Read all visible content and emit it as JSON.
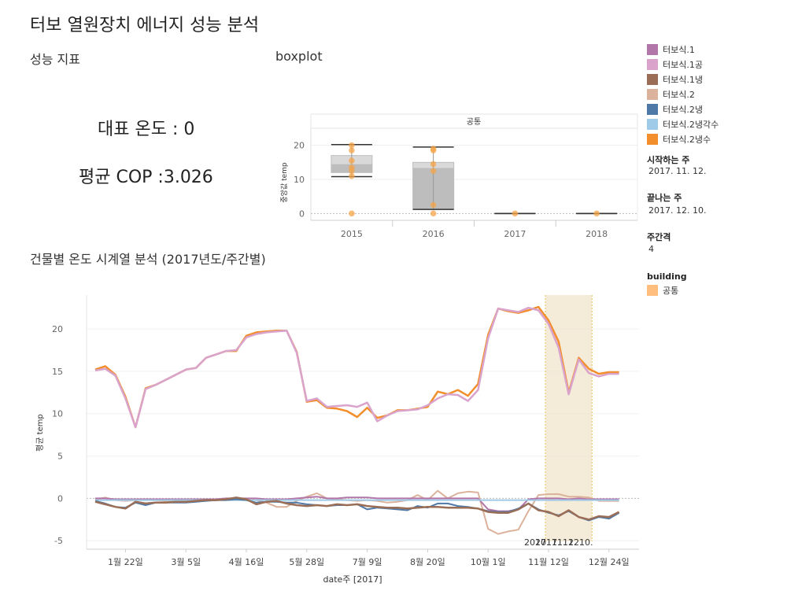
{
  "page": {
    "title": "터보 열원장치 에너지 성능 분석"
  },
  "performance": {
    "heading": "성능 지표",
    "rep_temp_label": "대표 온도 : 0",
    "avg_cop_label": "평균 COP :3.026"
  },
  "boxplot": {
    "heading": "boxplot",
    "panel_label": "공통",
    "ylabel": "중앙값 temp",
    "ytick_labels": [
      "20",
      "10",
      "0"
    ]
  },
  "timeseries": {
    "heading": "건물별  온도 시계열 분석 (2017년도/주간별)",
    "ylabel": "평균 temp",
    "xlabel": "date주 [2017]",
    "ytick_labels": [
      "20",
      "15",
      "10",
      "5",
      "0",
      "-5"
    ],
    "xtick_labels": [
      "1월 22일",
      "3월 5일",
      "4월 16일",
      "5월 28일",
      "7월 9일",
      "8월 20일",
      "10월 1일",
      "11월 12일",
      "12월 24일"
    ],
    "highlight_label": "2017. 12. 10.",
    "highlight_label_overlap": "2017. 11. 12."
  },
  "legend": {
    "items": [
      {
        "label": "터보식.1",
        "color": "#b376a8"
      },
      {
        "label": "터보식.1공",
        "color": "#d9a3cc"
      },
      {
        "label": "터보식.1냉",
        "color": "#9a6e56"
      },
      {
        "label": "터보식.2",
        "color": "#dbb29b"
      },
      {
        "label": "터보식.2냉",
        "color": "#4e79a7"
      },
      {
        "label": "터보식.2냉각수",
        "color": "#a0cbe8"
      },
      {
        "label": "터보식.2냉수",
        "color": "#f28e2b"
      }
    ]
  },
  "parameters": {
    "start_label": "시작하는 주",
    "start_value": "2017. 11. 12.",
    "end_label": "끝나는 주",
    "end_value": "2017. 12. 10.",
    "interval_label": "주간격",
    "interval_value": "4"
  },
  "building": {
    "label": "building",
    "items": [
      {
        "label": "공통",
        "color": "#ffbe7d"
      }
    ]
  },
  "chart_data": [
    {
      "type": "boxplot",
      "title": "boxplot",
      "panel": "공통",
      "ylabel": "중앙값 temp",
      "ylim": [
        -2,
        25
      ],
      "categories": [
        "2015",
        "2016",
        "2017",
        "2018"
      ],
      "boxes": [
        {
          "category": "2015",
          "min": 10.8,
          "q1": 12,
          "median": 14.3,
          "q3": 17,
          "max": 20.2,
          "points": [
            0,
            11,
            12.5,
            13.5,
            15.5,
            18.5,
            20
          ]
        },
        {
          "category": "2016",
          "min": 1.2,
          "q1": 1.2,
          "median": 13.2,
          "q3": 15,
          "max": 19.5,
          "points": [
            0,
            2.5,
            12.5,
            14.5,
            18.5,
            19
          ]
        },
        {
          "category": "2017",
          "min": 0,
          "q1": 0,
          "median": 0,
          "q3": 0,
          "max": 0,
          "points": [
            0
          ]
        },
        {
          "category": "2018",
          "min": 0,
          "q1": 0,
          "median": 0,
          "q3": 0,
          "max": 0,
          "points": [
            0
          ]
        }
      ],
      "grid": true
    },
    {
      "type": "line",
      "title": "건물별  온도 시계열 분석 (2017년도/주간별)",
      "xlabel": "date주 [2017]",
      "ylabel": "평균 temp",
      "ylim": [
        -6,
        24
      ],
      "x_ticks": [
        "1월 22일",
        "3월 5일",
        "4월 16일",
        "5월 28일",
        "7월 9일",
        "8월 20일",
        "10월 1일",
        "11월 12일",
        "12월 24일"
      ],
      "highlight_range": [
        "2017. 11. 12.",
        "2017. 12. 10."
      ],
      "series": [
        {
          "name": "터보식.2냉수",
          "color": "#f28e2b",
          "width": 2.5,
          "values": [
            15.2,
            15.6,
            14.6,
            12,
            8.4,
            13,
            13.4,
            14,
            14.6,
            15.2,
            15.4,
            16.6,
            17,
            17.4,
            17.4,
            19.2,
            19.6,
            19.7,
            19.8,
            19.8,
            17.3,
            11.4,
            11.6,
            10.7,
            10.6,
            10.3,
            9.6,
            10.7,
            9.5,
            9.8,
            10.4,
            10.4,
            10.6,
            10.8,
            12.6,
            12.3,
            12.8,
            12.1,
            13.5,
            19.3,
            22.4,
            22.1,
            21.9,
            22.2,
            22.6,
            21,
            18.5,
            12.5,
            16.6,
            15.3,
            14.7,
            14.9,
            14.9
          ]
        },
        {
          "name": "터보식.1공",
          "color": "#d9a3cc",
          "width": 2.5,
          "values": [
            15.1,
            15.3,
            14.5,
            11.8,
            8.4,
            12.9,
            13.4,
            14,
            14.6,
            15.2,
            15.4,
            16.6,
            17,
            17.4,
            17.5,
            19,
            19.4,
            19.6,
            19.7,
            19.8,
            17.2,
            11.5,
            11.8,
            10.8,
            10.9,
            11,
            10.8,
            11.3,
            9.1,
            9.8,
            10.3,
            10.4,
            10.5,
            11,
            11.8,
            12.3,
            12.2,
            11.5,
            12.8,
            18.9,
            22.4,
            22.2,
            22,
            22.5,
            22.2,
            20.6,
            17.8,
            12.3,
            16.4,
            14.8,
            14.4,
            14.7,
            14.7
          ]
        },
        {
          "name": "터보식.2",
          "color": "#dbb29b",
          "width": 2,
          "values": [
            -0.1,
            0.1,
            -0.2,
            -0.3,
            -0.2,
            -0.2,
            -0.2,
            -0.3,
            -0.3,
            -0.2,
            -0.2,
            -0.2,
            -0.1,
            0,
            0,
            -0.1,
            -0.2,
            -0.5,
            -1,
            -1,
            -0.3,
            0.2,
            0.6,
            0,
            -0.1,
            -0.2,
            -0.3,
            -0.2,
            -0.3,
            -0.5,
            -0.4,
            -0.2,
            0.4,
            -0.2,
            0.9,
            0,
            0.6,
            0.8,
            0.7,
            -3.6,
            -4.2,
            -3.9,
            -3.7,
            -1.5,
            0.4,
            0.5,
            0.5,
            0.2,
            0.2,
            0.1,
            -0.3,
            -0.3,
            -0.3
          ]
        },
        {
          "name": "터보식.1",
          "color": "#b376a8",
          "width": 2,
          "values": [
            0,
            0,
            -0.1,
            -0.1,
            -0.1,
            -0.1,
            -0.1,
            -0.1,
            -0.1,
            -0.1,
            -0.1,
            -0.1,
            -0.1,
            0,
            0,
            0,
            0,
            -0.1,
            -0.1,
            -0.1,
            0,
            0.1,
            0.2,
            0,
            0,
            0.1,
            0.1,
            0.1,
            0,
            0,
            0,
            0,
            0,
            0,
            0,
            0,
            0,
            0,
            0,
            -1.3,
            -1.5,
            -1.5,
            -1.3,
            -0.1,
            0,
            0,
            0,
            -0.1,
            0,
            -0.1,
            -0.1,
            -0.1,
            -0.1
          ]
        },
        {
          "name": "터보식.2냉각수",
          "color": "#a0cbe8",
          "width": 2,
          "values": [
            -0.2,
            -0.2,
            -0.2,
            -0.2,
            -0.2,
            -0.2,
            -0.2,
            -0.2,
            -0.2,
            -0.2,
            -0.2,
            -0.2,
            -0.2,
            -0.2,
            -0.2,
            -0.2,
            -0.2,
            -0.2,
            -0.2,
            -0.2,
            -0.2,
            -0.2,
            -0.2,
            -0.2,
            -0.2,
            -0.2,
            -0.2,
            -0.2,
            -0.2,
            -0.2,
            -0.2,
            -0.2,
            -0.2,
            -0.2,
            -0.2,
            -0.2,
            -0.2,
            -0.2,
            -0.2,
            -0.2,
            -0.2,
            -0.2,
            -0.2,
            -0.2,
            -0.2,
            -0.2,
            -0.2,
            -0.2,
            -0.2,
            -0.2,
            -0.2,
            -0.2,
            -0.2
          ]
        },
        {
          "name": "터보식.2냉",
          "color": "#4e79a7",
          "width": 2,
          "values": [
            -0.3,
            -0.6,
            -1,
            -1.1,
            -0.5,
            -0.8,
            -0.5,
            -0.5,
            -0.5,
            -0.5,
            -0.4,
            -0.3,
            -0.2,
            -0.2,
            -0.1,
            -0.2,
            -0.5,
            -0.4,
            -0.4,
            -0.5,
            -0.5,
            -0.7,
            -0.8,
            -0.9,
            -0.8,
            -0.8,
            -0.7,
            -1.3,
            -1.1,
            -1.2,
            -1.3,
            -1.4,
            -0.9,
            -1.1,
            -0.6,
            -0.6,
            -0.9,
            -1,
            -1.2,
            -1.5,
            -1.6,
            -1.6,
            -1.2,
            -0.6,
            -1.3,
            -1.7,
            -2,
            -1.5,
            -2.2,
            -2.6,
            -2.2,
            -2.4,
            -1.7
          ]
        },
        {
          "name": "터보식.1냉",
          "color": "#9a6e56",
          "width": 2.5,
          "values": [
            -0.4,
            -0.7,
            -1,
            -1.2,
            -0.4,
            -0.6,
            -0.5,
            -0.5,
            -0.4,
            -0.4,
            -0.3,
            -0.2,
            -0.2,
            -0.1,
            0.1,
            -0.1,
            -0.7,
            -0.4,
            -0.3,
            -0.6,
            -0.8,
            -0.9,
            -0.8,
            -0.9,
            -0.7,
            -0.8,
            -0.7,
            -0.9,
            -1,
            -1.1,
            -1.1,
            -1.2,
            -1.1,
            -1,
            -1,
            -1.1,
            -1.1,
            -1.1,
            -1.2,
            -1.6,
            -1.7,
            -1.7,
            -1.3,
            -0.6,
            -1.4,
            -1.6,
            -2.1,
            -1.4,
            -2.2,
            -2.5,
            -2.1,
            -2.2,
            -1.6
          ]
        }
      ],
      "grid": true
    }
  ]
}
